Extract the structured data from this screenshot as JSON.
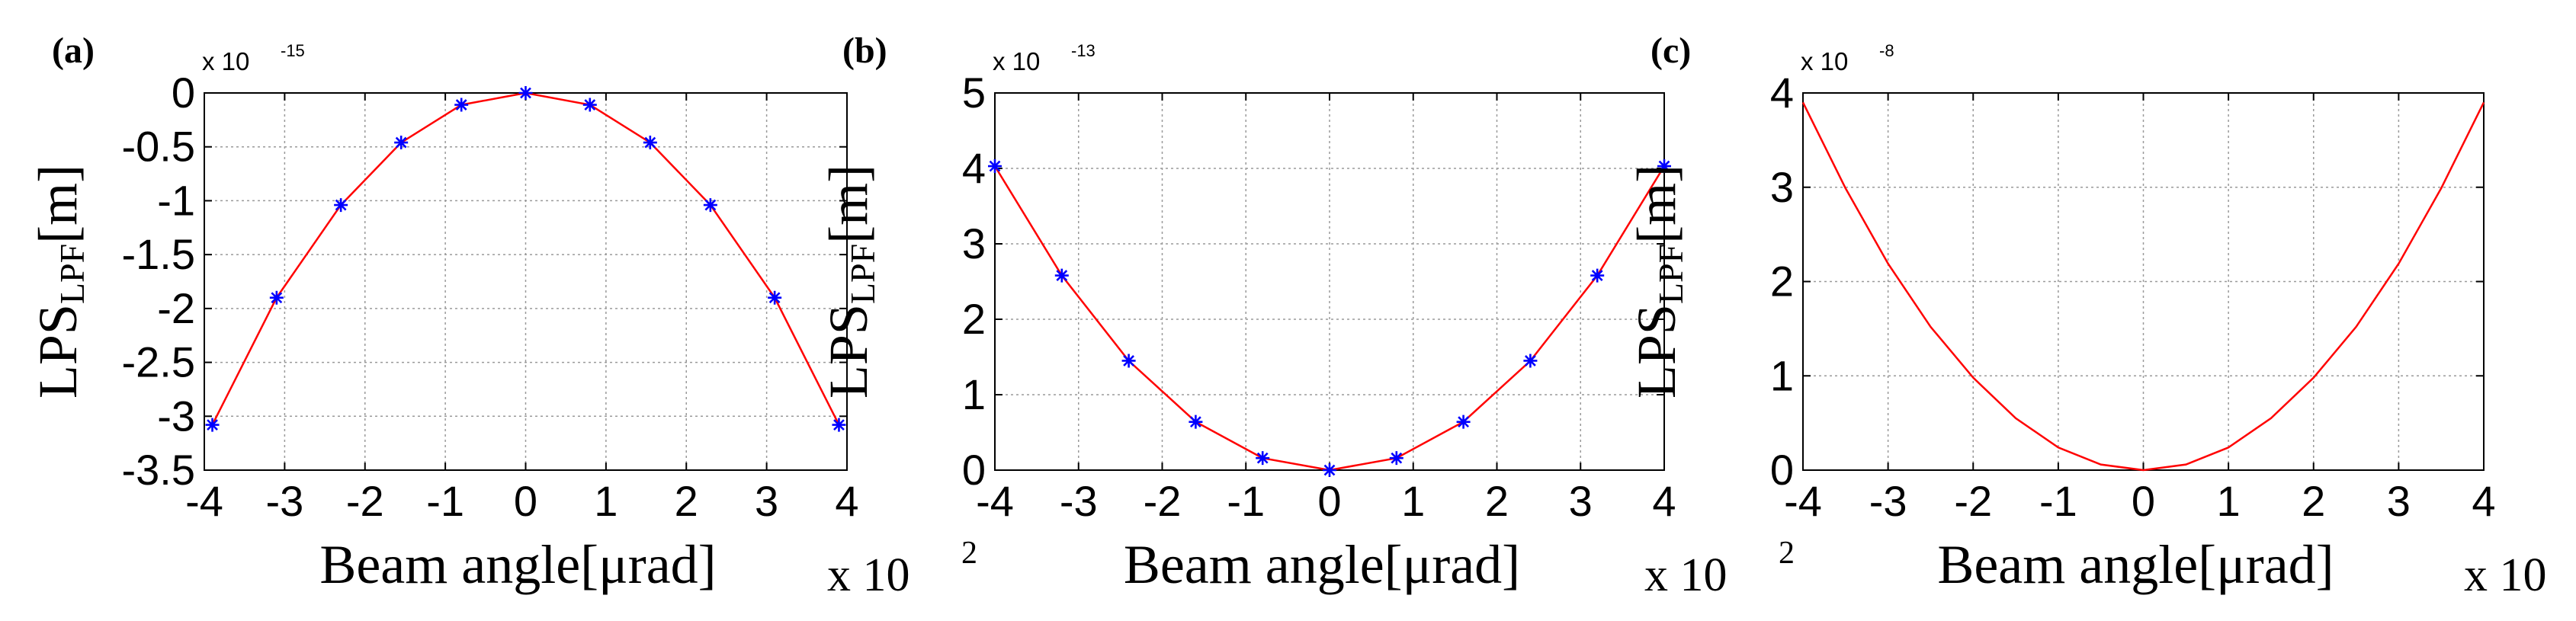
{
  "chart_data": [
    {
      "type": "line",
      "panel_label": "(a)",
      "y_exponent": {
        "base": "x 10",
        "power": "-15"
      },
      "x_multiplier": {
        "base": "x 10",
        "power": "2"
      },
      "ylabel": {
        "main": "LPS",
        "sub": "LPF",
        "unit": "[m]"
      },
      "xlabel": "Beam angle[μrad]",
      "xlim": [
        -4,
        4
      ],
      "ylim": [
        -3.5,
        0
      ],
      "x_ticks": [
        -4,
        -3,
        -2,
        -1,
        0,
        1,
        2,
        3,
        4
      ],
      "y_ticks": [
        0,
        -0.5,
        -1,
        -1.5,
        -2,
        -2.5,
        -3,
        -3.5
      ],
      "grid": true,
      "line_color": "#ff0000",
      "marker_color": "#0000ff",
      "marker": "asterisk",
      "series": [
        {
          "x": [
            -3.9,
            -3.1,
            -2.3,
            -1.55,
            -0.8,
            0,
            0.8,
            1.55,
            2.3,
            3.1,
            3.9
          ],
          "values": [
            -3.08,
            -1.9,
            -1.04,
            -0.46,
            -0.11,
            0,
            -0.11,
            -0.46,
            -1.04,
            -1.9,
            -3.08
          ]
        }
      ]
    },
    {
      "type": "line",
      "panel_label": "(b)",
      "y_exponent": {
        "base": "x 10",
        "power": "-13"
      },
      "x_multiplier": {
        "base": "x 10",
        "power": "2"
      },
      "ylabel": {
        "main": "LPS",
        "sub": "LPF",
        "unit": "[m]"
      },
      "xlabel": "Beam angle[μrad]",
      "xlim": [
        -4,
        4
      ],
      "ylim": [
        0,
        5
      ],
      "x_ticks": [
        -4,
        -3,
        -2,
        -1,
        0,
        1,
        2,
        3,
        4
      ],
      "y_ticks": [
        0,
        1,
        2,
        3,
        4,
        5
      ],
      "grid": true,
      "line_color": "#ff0000",
      "marker_color": "#0000ff",
      "marker": "asterisk",
      "series": [
        {
          "x": [
            -4,
            -3.2,
            -2.4,
            -1.6,
            -0.8,
            0,
            0.8,
            1.6,
            2.4,
            3.2,
            4
          ],
          "values": [
            4.03,
            2.58,
            1.45,
            0.64,
            0.16,
            0,
            0.16,
            0.64,
            1.45,
            2.58,
            4.03
          ]
        }
      ]
    },
    {
      "type": "line",
      "panel_label": "(c)",
      "y_exponent": {
        "base": "x 10",
        "power": "-8"
      },
      "x_multiplier": {
        "base": "x 10",
        "power": "2"
      },
      "ylabel": {
        "main": "LPS",
        "sub": "LPF",
        "unit": "[m]"
      },
      "xlabel": "Beam angle[μrad]",
      "xlim": [
        -4,
        4
      ],
      "ylim": [
        0,
        4
      ],
      "x_ticks": [
        -4,
        -3,
        -2,
        -1,
        0,
        1,
        2,
        3,
        4
      ],
      "y_ticks": [
        0,
        1,
        2,
        3,
        4
      ],
      "grid": true,
      "line_color": "#ff0000",
      "marker": "none",
      "series": [
        {
          "x": [
            -4,
            -3.5,
            -3,
            -2.5,
            -2,
            -1.5,
            -1,
            -0.5,
            0,
            0.5,
            1,
            1.5,
            2,
            2.5,
            3,
            3.5,
            4
          ],
          "values": [
            3.9,
            2.99,
            2.19,
            1.52,
            0.98,
            0.55,
            0.24,
            0.06,
            0,
            0.06,
            0.24,
            0.55,
            0.98,
            1.52,
            2.19,
            2.99,
            3.9
          ]
        }
      ]
    }
  ]
}
